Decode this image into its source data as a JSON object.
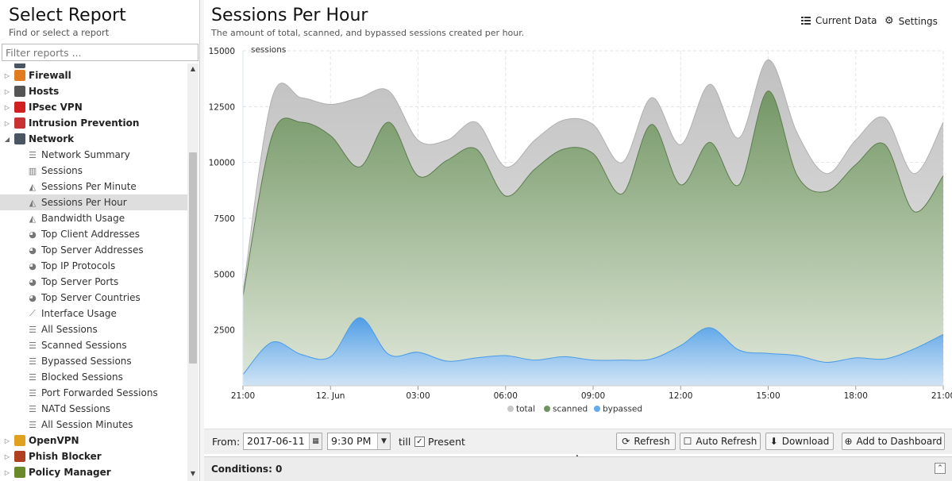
{
  "sidebar": {
    "title": "Select Report",
    "subtitle": "Find or select a report",
    "filter_placeholder": "Filter reports ...",
    "categories_top": [
      {
        "label": "Firewall",
        "icon": "firewall-icon",
        "color": "#e07b1f"
      },
      {
        "label": "Hosts",
        "icon": "hosts-icon",
        "color": "#555555"
      },
      {
        "label": "IPsec VPN",
        "icon": "lock-icon",
        "color": "#d22020"
      },
      {
        "label": "Intrusion Prevention",
        "icon": "intrusion-prevention-icon",
        "color": "#c83232"
      },
      {
        "label": "Network",
        "icon": "network-icon",
        "color": "#4a5563"
      }
    ],
    "network_items": [
      {
        "label": "Network Summary",
        "icon": "text-lines-icon",
        "glyph": "☰"
      },
      {
        "label": "Sessions",
        "icon": "bar-chart-icon",
        "glyph": "▥"
      },
      {
        "label": "Sessions Per Minute",
        "icon": "area-chart-icon",
        "glyph": "◭"
      },
      {
        "label": "Sessions Per Hour",
        "icon": "area-chart-icon",
        "glyph": "◭",
        "selected": true
      },
      {
        "label": "Bandwidth Usage",
        "icon": "area-chart-icon",
        "glyph": "◭"
      },
      {
        "label": "Top Client Addresses",
        "icon": "pie-chart-icon",
        "glyph": "◕"
      },
      {
        "label": "Top Server Addresses",
        "icon": "pie-chart-icon",
        "glyph": "◕"
      },
      {
        "label": "Top IP Protocols",
        "icon": "pie-chart-icon",
        "glyph": "◕"
      },
      {
        "label": "Top Server Ports",
        "icon": "pie-chart-icon",
        "glyph": "◕"
      },
      {
        "label": "Top Server Countries",
        "icon": "pie-chart-icon",
        "glyph": "◕"
      },
      {
        "label": "Interface Usage",
        "icon": "line-chart-icon",
        "glyph": "⟋"
      },
      {
        "label": "All Sessions",
        "icon": "list-icon",
        "glyph": "☰"
      },
      {
        "label": "Scanned Sessions",
        "icon": "list-icon",
        "glyph": "☰"
      },
      {
        "label": "Bypassed Sessions",
        "icon": "list-icon",
        "glyph": "☰"
      },
      {
        "label": "Blocked Sessions",
        "icon": "list-icon",
        "glyph": "☰"
      },
      {
        "label": "Port Forwarded Sessions",
        "icon": "list-icon",
        "glyph": "☰"
      },
      {
        "label": "NATd Sessions",
        "icon": "list-icon",
        "glyph": "☰"
      },
      {
        "label": "All Session Minutes",
        "icon": "list-icon",
        "glyph": "☰"
      }
    ],
    "categories_bottom": [
      {
        "label": "OpenVPN",
        "icon": "openvpn-icon",
        "color": "#e0a020"
      },
      {
        "label": "Phish Blocker",
        "icon": "phish-blocker-icon",
        "color": "#b04020"
      },
      {
        "label": "Policy Manager",
        "icon": "policy-manager-icon",
        "color": "#6a8a2a"
      }
    ]
  },
  "report": {
    "title": "Sessions Per Hour",
    "description": "The amount of total, scanned, and bypassed sessions created per hour.",
    "current_data_label": "Current Data",
    "settings_label": "Settings"
  },
  "chart_data": {
    "type": "area",
    "ylabel": "sessions",
    "ylim": [
      0,
      15000
    ],
    "yticks": [
      2500,
      5000,
      7500,
      10000,
      12500,
      15000
    ],
    "x_tick_labels": [
      "21:00",
      "12. Jun",
      "03:00",
      "06:00",
      "09:00",
      "12:00",
      "15:00",
      "18:00",
      "21:00"
    ],
    "x_hours": [
      "21:00",
      "22:00",
      "23:00",
      "00:00",
      "01:00",
      "02:00",
      "03:00",
      "04:00",
      "05:00",
      "06:00",
      "07:00",
      "08:00",
      "09:00",
      "10:00",
      "11:00",
      "12:00",
      "13:00",
      "14:00",
      "15:00",
      "16:00",
      "17:00",
      "18:00",
      "19:00",
      "20:00",
      "21:00"
    ],
    "legend": "bottom-center",
    "grid": true,
    "series": [
      {
        "name": "total",
        "color": "#c8c8c8",
        "values": [
          4200,
          12900,
          12900,
          12600,
          12900,
          13200,
          11000,
          11000,
          11800,
          9800,
          11000,
          11900,
          11700,
          10000,
          12900,
          10800,
          13500,
          11100,
          14600,
          11300,
          9500,
          11000,
          12000,
          9500,
          11800
        ]
      },
      {
        "name": "scanned",
        "color": "#6f9460",
        "values": [
          4000,
          11200,
          11800,
          11200,
          9800,
          11800,
          9400,
          10100,
          10600,
          8500,
          9700,
          10600,
          10400,
          8600,
          11700,
          9000,
          10900,
          9000,
          13200,
          9400,
          8700,
          9900,
          10800,
          7800,
          9400
        ]
      },
      {
        "name": "bypassed",
        "color": "#66aaee",
        "values": [
          500,
          1950,
          1400,
          1300,
          3050,
          1400,
          1500,
          1100,
          1250,
          1350,
          1150,
          1300,
          1150,
          1150,
          1200,
          1800,
          2600,
          1600,
          1450,
          1350,
          1050,
          1250,
          1200,
          1650,
          2300
        ]
      }
    ]
  },
  "toolbar": {
    "from_label": "From:",
    "date_value": "2017-06-11",
    "time_value": "9:30 PM",
    "till_label": "till",
    "present_label": "Present",
    "present_checked": "✓",
    "refresh_label": "Refresh",
    "auto_refresh_label": "Auto Refresh",
    "download_label": "Download",
    "add_dashboard_label": "Add to Dashboard"
  },
  "conditions": {
    "label": "Conditions: 0"
  }
}
